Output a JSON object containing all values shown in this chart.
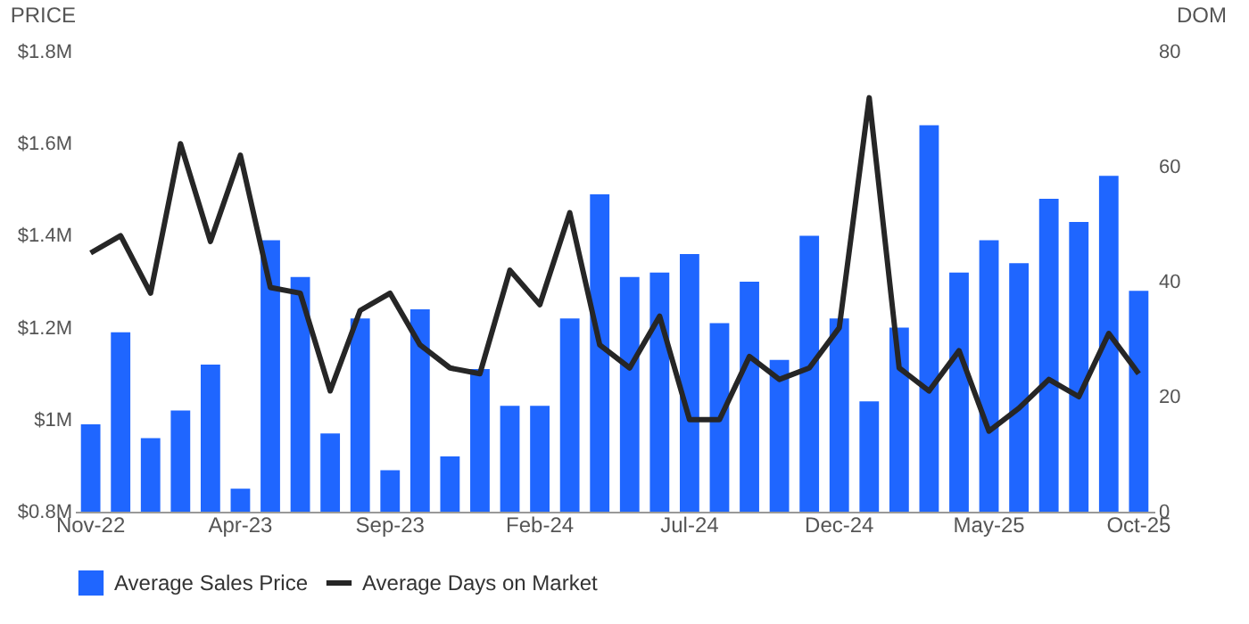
{
  "chart_data": {
    "type": "bar",
    "categories": [
      "Nov-22",
      null,
      null,
      null,
      null,
      "Apr-23",
      null,
      null,
      null,
      null,
      "Sep-23",
      null,
      null,
      null,
      null,
      "Feb-24",
      null,
      null,
      null,
      null,
      "Jul-24",
      null,
      null,
      null,
      null,
      "Dec-24",
      null,
      null,
      null,
      null,
      "May-25",
      null,
      null,
      null,
      null,
      "Oct-25"
    ],
    "ylabel": "PRICE",
    "y2label": "DOM",
    "ylim": [
      0.8,
      1.8
    ],
    "yticks": [
      {
        "value": 0.8,
        "label": "$0.8M"
      },
      {
        "value": 1.0,
        "label": "$1M"
      },
      {
        "value": 1.2,
        "label": "$1.2M"
      },
      {
        "value": 1.4,
        "label": "$1.4M"
      },
      {
        "value": 1.6,
        "label": "$1.6M"
      },
      {
        "value": 1.8,
        "label": "$1.8M"
      }
    ],
    "y2lim": [
      0,
      80
    ],
    "y2ticks": [
      0,
      20,
      40,
      60,
      80
    ],
    "grid": false,
    "legend": "bottom",
    "series": [
      {
        "name": "Average Days on Market",
        "type": "line",
        "axis": "y2",
        "color": "#262626",
        "values": [
          45,
          48,
          38,
          64,
          47,
          62,
          39,
          38,
          21,
          35,
          38,
          29,
          25,
          24,
          42,
          36,
          52,
          29,
          25,
          34,
          16,
          16,
          27,
          23,
          25,
          32,
          72,
          25,
          21,
          28,
          14,
          18,
          23,
          20,
          31,
          24
        ]
      },
      {
        "name": "Average Sales Price",
        "type": "bar",
        "color": "#1f66ff",
        "values": [
          0.99,
          1.19,
          0.96,
          1.02,
          1.12,
          0.85,
          1.39,
          1.31,
          0.97,
          1.22,
          0.89,
          1.24,
          0.92,
          1.11,
          1.03,
          1.03,
          1.22,
          1.49,
          1.31,
          1.32,
          1.36,
          1.21,
          1.3,
          1.13,
          1.4,
          1.22,
          1.04,
          1.2,
          1.64,
          1.32,
          1.39,
          1.34,
          1.48,
          1.43,
          1.53,
          1.28
        ]
      }
    ]
  }
}
